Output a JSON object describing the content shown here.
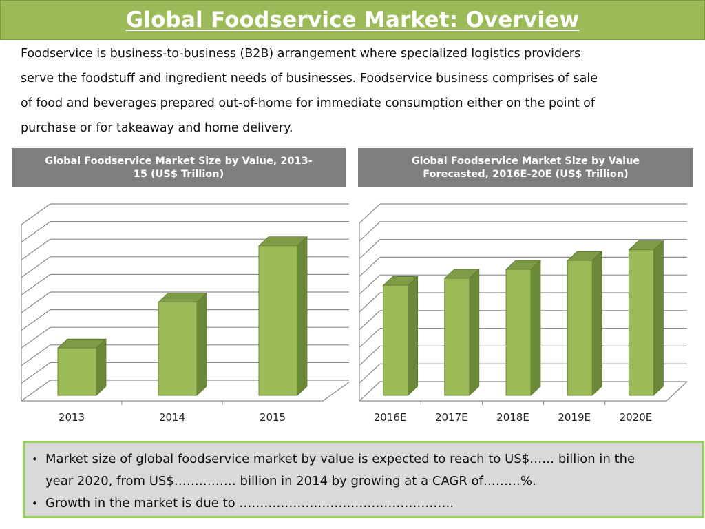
{
  "title": "Global Foodservice Market: Overview",
  "intro_lines": [
    "Foodservice is business-to-business (B2B) arrangement where specialized logistics providers",
    "serve the foodstuff and ingredient needs of businesses. Foodservice business comprises of sale",
    "of food and beverages prepared out-of-home for immediate consumption either on the point of",
    "purchase or for takeaway and home delivery."
  ],
  "charts": {
    "left_header_line1": "Global Foodservice Market Size by Value, 2013-",
    "left_header_line2": "15 (US$ Trillion)",
    "right_header_line1": "Global Foodservice Market Size by Value",
    "right_header_line2": "Forecasted, 2016E-20E (US$ Trillion)"
  },
  "chart_data": [
    {
      "type": "bar",
      "title": "Global Foodservice Market Size by Value, 2013-15 (US$ Trillion)",
      "categories": [
        "2013",
        "2014",
        "2015"
      ],
      "values": [
        3,
        5.6,
        8.8
      ],
      "ylim": [
        0,
        10
      ],
      "grid": true,
      "style": "3d-column",
      "color": "#9bbb59",
      "side_color": "#6b8a37",
      "top_color": "#7d9c45"
    },
    {
      "type": "bar",
      "title": "Global Foodservice Market Size by Value Forecasted, 2016E-20E (US$ Trillion)",
      "categories": [
        "2016E",
        "2017E",
        "2018E",
        "2019E",
        "2020E"
      ],
      "values": [
        6.5,
        6.9,
        7.4,
        7.9,
        8.5
      ],
      "ylim": [
        0,
        10
      ],
      "grid": true,
      "style": "3d-column",
      "color": "#9bbb59",
      "side_color": "#6b8a37",
      "top_color": "#7d9c45"
    }
  ],
  "notes": {
    "bullet": "•",
    "item1_line1": "Market size of global foodservice market by value is expected to reach to US$…… billion in the",
    "item1_line2": "year 2020, from US$…………… billion in 2014 by growing at a CAGR of………%.",
    "item2": "Growth in the market is due to …………………………………………….",
    "border_color": "#92d050",
    "background_color": "#d9d9d9"
  }
}
